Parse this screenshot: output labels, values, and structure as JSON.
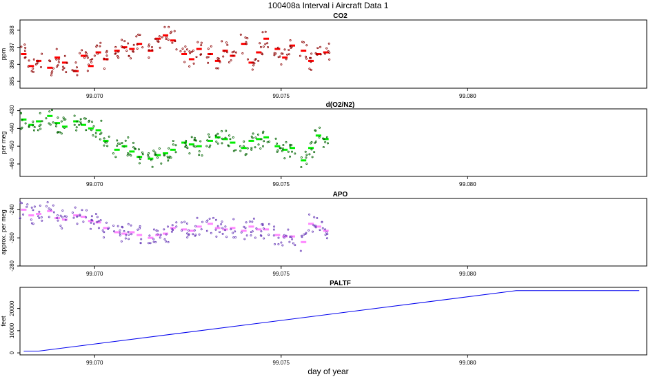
{
  "page": {
    "title": "100408a   Interval i Aircraft Data 1",
    "xlabel": "day of year"
  },
  "chart_data": [
    {
      "type": "scatter",
      "title": "CO2",
      "ylabel": "ppm",
      "color": "#ff0000",
      "point_color": "#8b0000",
      "xlim": [
        99.068,
        99.0848
      ],
      "ylim": [
        384.6,
        388.6
      ],
      "xticks": [
        99.07,
        99.075,
        99.08
      ],
      "xtick_labels": [
        "99.070",
        "99.075",
        "99.080"
      ],
      "yticks": [
        385,
        386,
        387,
        388
      ],
      "ytick_labels": [
        "385",
        "386",
        "387",
        "388"
      ],
      "series": [
        {
          "x": [
            99.0681,
            99.0683,
            99.0685,
            99.0688,
            99.069,
            99.0692,
            99.0695,
            99.0697,
            99.0699,
            99.0701,
            99.0703,
            99.0706,
            99.0708,
            99.071,
            99.0712,
            99.0715,
            99.0717,
            99.0719,
            99.0721,
            99.0724,
            99.0726,
            99.0728,
            99.0731,
            99.0733,
            99.0735,
            99.0737,
            99.074,
            99.0742,
            99.0744,
            99.0746,
            99.0749,
            99.0751,
            99.0753,
            99.0756,
            99.0758,
            99.076,
            99.0762
          ],
          "y": [
            386.6,
            385.9,
            386.2,
            385.8,
            386.4,
            386.1,
            385.6,
            386.5,
            385.9,
            386.7,
            386.3,
            386.8,
            387.0,
            386.9,
            387.2,
            386.8,
            387.5,
            387.7,
            387.4,
            386.6,
            386.3,
            386.9,
            386.6,
            386.2,
            386.8,
            386.5,
            387.2,
            386.1,
            386.7,
            387.5,
            386.9,
            386.4,
            387.1,
            386.8,
            386.2,
            386.6,
            386.7
          ]
        }
      ]
    },
    {
      "type": "scatter",
      "title": "d(O2/N2)",
      "ylabel": "per meg",
      "color": "#00ee00",
      "point_color": "#006400",
      "xlim": [
        99.068,
        99.0848
      ],
      "ylim": [
        -467,
        -429
      ],
      "xticks": [
        99.07,
        99.075,
        99.08
      ],
      "xtick_labels": [
        "99.070",
        "99.075",
        "99.080"
      ],
      "yticks": [
        -460,
        -450,
        -440,
        -430
      ],
      "ytick_labels": [
        "-460",
        "-450",
        "-440",
        "-430"
      ],
      "series": [
        {
          "x": [
            99.0681,
            99.0683,
            99.0685,
            99.0688,
            99.069,
            99.0692,
            99.0695,
            99.0697,
            99.0699,
            99.0701,
            99.0703,
            99.0706,
            99.0708,
            99.071,
            99.0712,
            99.0715,
            99.0717,
            99.0719,
            99.0721,
            99.0724,
            99.0726,
            99.0728,
            99.0731,
            99.0733,
            99.0735,
            99.0737,
            99.074,
            99.0742,
            99.0744,
            99.0746,
            99.0749,
            99.0751,
            99.0753,
            99.0756,
            99.0758,
            99.076,
            99.0762
          ],
          "y": [
            -435,
            -438,
            -436,
            -433,
            -437,
            -439,
            -436,
            -438,
            -440,
            -441,
            -447,
            -452,
            -450,
            -453,
            -456,
            -457,
            -455,
            -454,
            -452,
            -448,
            -449,
            -450,
            -447,
            -445,
            -446,
            -448,
            -451,
            -447,
            -446,
            -445,
            -450,
            -452,
            -451,
            -458,
            -451,
            -444,
            -446
          ]
        }
      ]
    },
    {
      "type": "scatter",
      "title": "APO",
      "ylabel": "approx. per meg",
      "color": "#ff88ff",
      "point_color": "#6a3db8",
      "xlim": [
        99.068,
        99.0848
      ],
      "ylim": [
        -280,
        -232
      ],
      "xticks": [
        99.07,
        99.075,
        99.08
      ],
      "xtick_labels": [
        "99.070",
        "99.075",
        "99.080"
      ],
      "yticks": [
        -280,
        -260,
        -240
      ],
      "ytick_labels": [
        "-280",
        "-260",
        "-240"
      ],
      "series": [
        {
          "x": [
            99.0681,
            99.0683,
            99.0685,
            99.0688,
            99.069,
            99.0692,
            99.0695,
            99.0697,
            99.0699,
            99.0701,
            99.0703,
            99.0706,
            99.0708,
            99.071,
            99.0712,
            99.0715,
            99.0717,
            99.0719,
            99.0721,
            99.0724,
            99.0726,
            99.0728,
            99.0731,
            99.0733,
            99.0735,
            99.0737,
            99.074,
            99.0742,
            99.0744,
            99.0746,
            99.0749,
            99.0751,
            99.0753,
            99.0756,
            99.0758,
            99.076,
            99.0762
          ],
          "y": [
            -240,
            -244,
            -243,
            -241,
            -246,
            -247,
            -244,
            -245,
            -248,
            -249,
            -253,
            -256,
            -257,
            -256,
            -258,
            -260,
            -258,
            -257,
            -253,
            -254,
            -255,
            -252,
            -250,
            -253,
            -254,
            -253,
            -255,
            -252,
            -254,
            -254,
            -258,
            -259,
            -259,
            -263,
            -250,
            -252,
            -255
          ]
        }
      ]
    },
    {
      "type": "line",
      "title": "PALTF",
      "ylabel": "feet",
      "color": "#0000ee",
      "xlim": [
        99.068,
        99.0848
      ],
      "ylim": [
        -900,
        29500
      ],
      "xticks": [
        99.07,
        99.075,
        99.08
      ],
      "xtick_labels": [
        "99.070",
        "99.075",
        "99.080"
      ],
      "yticks": [
        0,
        10000,
        20000
      ],
      "ytick_labels": [
        "0",
        "10000",
        "20000"
      ],
      "series": [
        {
          "x": [
            99.0681,
            99.0685,
            99.0813,
            99.0846
          ],
          "y": [
            800,
            800,
            28000,
            28000
          ]
        }
      ]
    }
  ]
}
